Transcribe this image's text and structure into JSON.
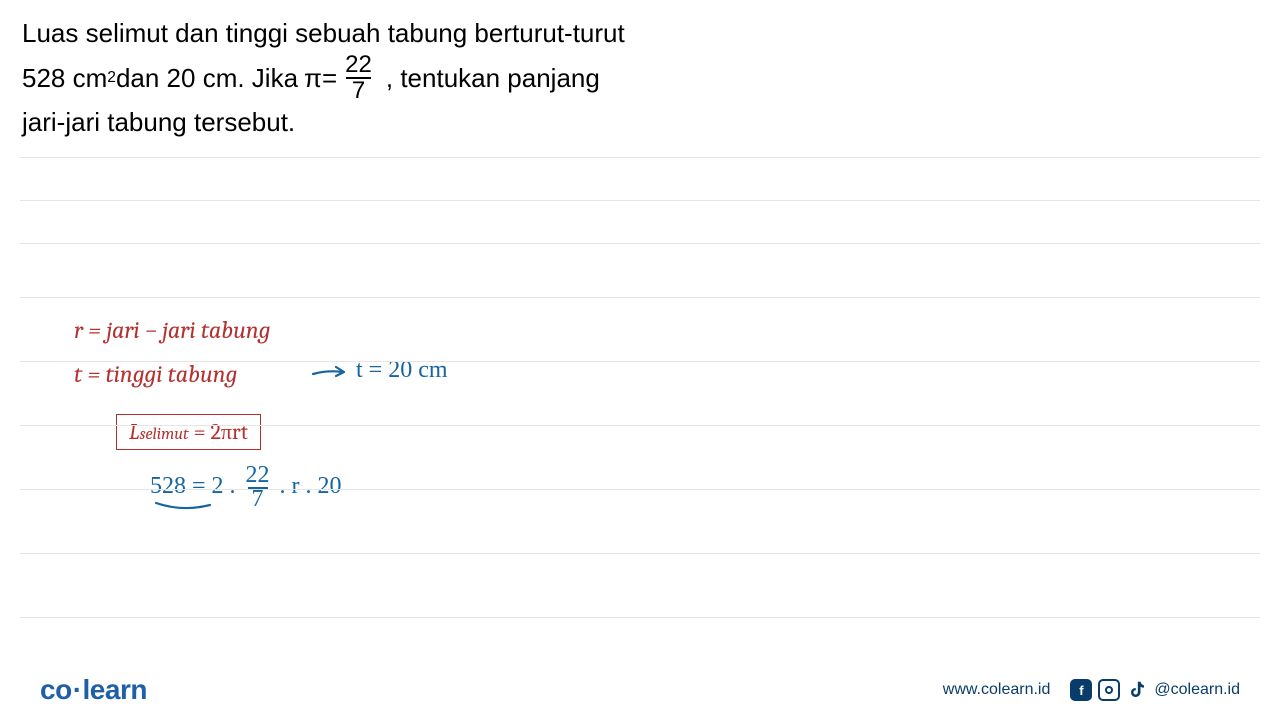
{
  "question": {
    "line1": "Luas selimut dan tinggi sebuah tabung berturut-turut",
    "line2_a": "528 cm",
    "line2_sup": "2",
    "line2_b": " dan 20 cm. Jika  ",
    "pi_symbol": "π=",
    "fraction_num": "22",
    "fraction_den": "7",
    "line2_c": ", tentukan panjang",
    "line3": "jari-jari tabung tersebut."
  },
  "work": {
    "line1": "r = jari − jari tabung",
    "line2": "t = tinggi tabung",
    "t_value": "t = 20 cm",
    "formula_L": "L",
    "formula_sub": "selimut",
    "formula_rest": " = 2πrt",
    "calc_a": "528 =  2 . ",
    "calc_num": "22",
    "calc_den": "7",
    "calc_b": " . r .  20"
  },
  "rules": {
    "positions": [
      157,
      200,
      243,
      297,
      361,
      425,
      489,
      553,
      617
    ]
  },
  "colors": {
    "red": "#b43130",
    "blue_hand": "#1565a0",
    "logo_blue": "#1e5fa8",
    "footer_dark": "#083d6b",
    "rule_gray": "#e5e5e5"
  },
  "footer": {
    "logo_a": "co",
    "logo_b": "learn",
    "url": "www.colearn.id",
    "handle": "@colearn.id"
  }
}
